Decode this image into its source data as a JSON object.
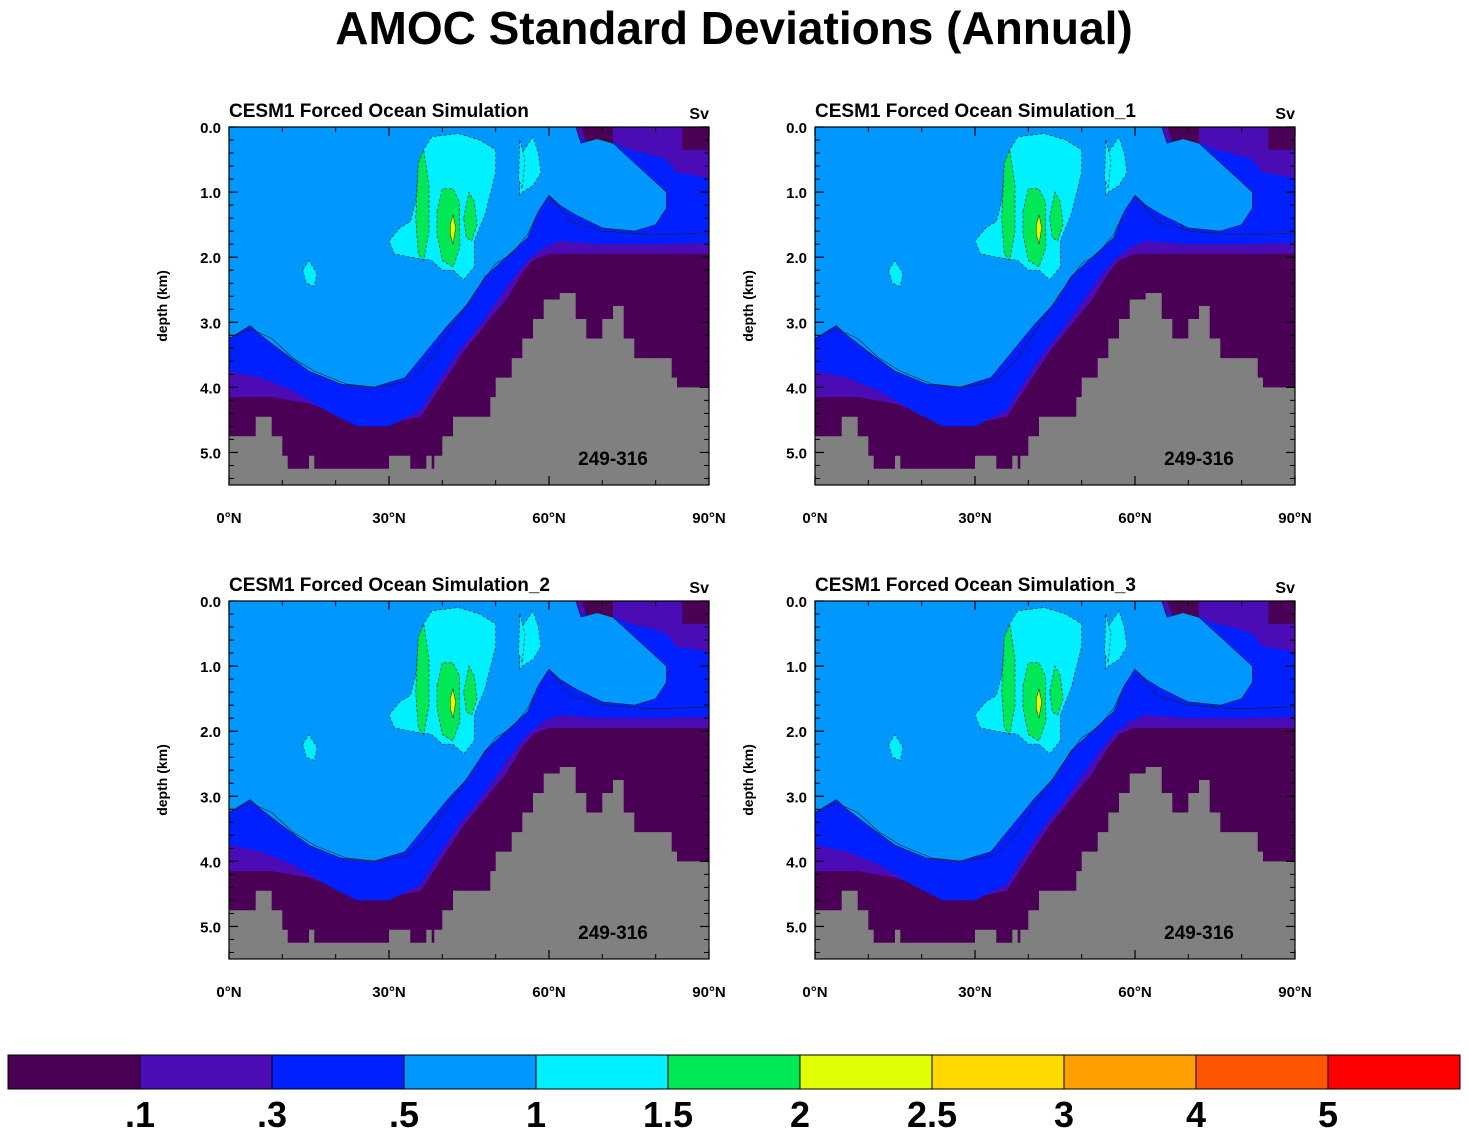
{
  "main_title": "AMOC Standard Deviations (Annual)",
  "chart_data": [
    {
      "type": "contour",
      "title": "CESM1 Forced Ocean Simulation",
      "units": "Sv",
      "period": "249-316",
      "ylabel": "depth (km)",
      "xlabel": "",
      "xlim": [
        0,
        90
      ],
      "ylim": [
        5.5,
        0
      ],
      "xticks": [
        "0°N",
        "30°N",
        "60°N",
        "90°N"
      ],
      "yticks": [
        "0.0",
        "1.0",
        "2.0",
        "3.0",
        "4.0",
        "5.0"
      ]
    },
    {
      "type": "contour",
      "title": "CESM1 Forced Ocean Simulation_1",
      "units": "Sv",
      "period": "249-316",
      "ylabel": "depth (km)",
      "xlabel": "",
      "xlim": [
        0,
        90
      ],
      "ylim": [
        5.5,
        0
      ],
      "xticks": [
        "0°N",
        "30°N",
        "60°N",
        "90°N"
      ],
      "yticks": [
        "0.0",
        "1.0",
        "2.0",
        "3.0",
        "4.0",
        "5.0"
      ]
    },
    {
      "type": "contour",
      "title": "CESM1 Forced Ocean Simulation_2",
      "units": "Sv",
      "period": "249-316",
      "ylabel": "depth (km)",
      "xlabel": "",
      "xlim": [
        0,
        90
      ],
      "ylim": [
        5.5,
        0
      ],
      "xticks": [
        "0°N",
        "30°N",
        "60°N",
        "90°N"
      ],
      "yticks": [
        "0.0",
        "1.0",
        "2.0",
        "3.0",
        "4.0",
        "5.0"
      ]
    },
    {
      "type": "contour",
      "title": "CESM1 Forced Ocean Simulation_3",
      "units": "Sv",
      "period": "249-316",
      "ylabel": "depth (km)",
      "xlabel": "",
      "xlim": [
        0,
        90
      ],
      "ylim": [
        5.5,
        0
      ],
      "xticks": [
        "0°N",
        "30°N",
        "60°N",
        "90°N"
      ],
      "yticks": [
        "0.0",
        "1.0",
        "2.0",
        "3.0",
        "4.0",
        "5.0"
      ]
    }
  ],
  "colorbar": {
    "colors": [
      "#4a0055",
      "#4b0bb5",
      "#0020ff",
      "#0098ff",
      "#00f0ff",
      "#00e855",
      "#e0ff00",
      "#ffd800",
      "#ff9f00",
      "#ff5500",
      "#ff0000"
    ],
    "labels": [
      ".1",
      ".3",
      ".5",
      "1",
      "1.5",
      "2",
      "2.5",
      "3",
      "4",
      "5"
    ]
  },
  "colors": {
    "land": "#808080",
    "lev1": "#4a0055",
    "lev2": "#4b0bb5",
    "lev3": "#0020ff",
    "lev4": "#0098ff",
    "lev5": "#00f0ff",
    "lev6": "#00e855",
    "lev7": "#e0ff00"
  }
}
